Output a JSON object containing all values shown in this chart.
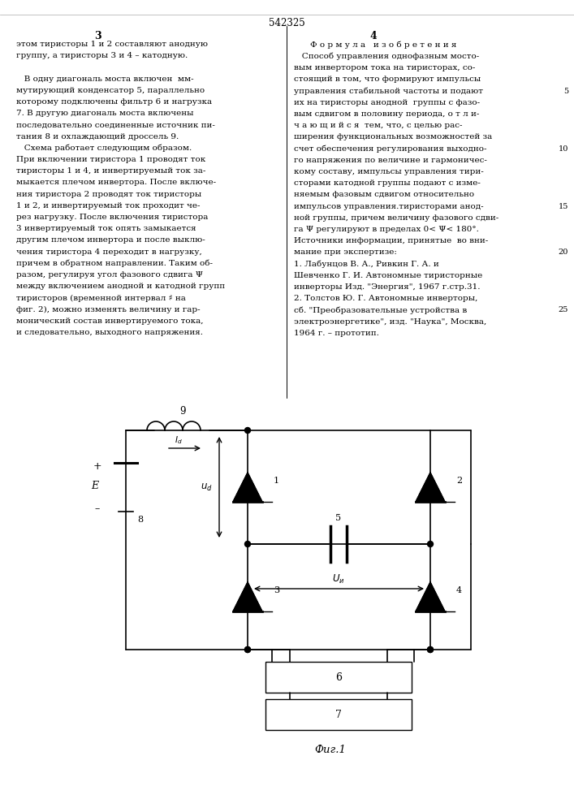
{
  "page_number": "542325",
  "col_left": "3",
  "col_right": "4",
  "text_left_lines": [
    "этом тиристоры 1 и 2 составляют анодную",
    "группу, а тиристоры 3 и 4 – катодную.",
    "",
    "   В одну диагональ моста включен  мм-",
    "мутирующий конденсатор 5, параллельно",
    "которому подключены фильтр 6 и нагрузка",
    "7. В другую диагональ моста включены",
    "последовательно соединенные источник пи-",
    "тания 8 и охлаждающий дроссель 9.",
    "   Схема работает следующим образом.",
    "При включении тиристора 1 проводят ток",
    "тиристоры 1 и 4, и инвертируемый ток за-",
    "мыкается плечом инвертора. После включе-",
    "ния тиристора 2 проводят ток тиристоры",
    "1 и 2, и инвертируемый ток проходит че-",
    "рез нагрузку. После включения тиристора",
    "3 инвертируемый ток опять замыкается",
    "другим плечом инвертора и после выклю-",
    "чения тиристора 4 переходит в нагрузку,",
    "причем в обратном направлении. Таким об-",
    "разом, регулируя угол фазового сдвига Ψ",
    "между включением анодной и катодной групп",
    "тиристоров (временной интервал ♯ на",
    "фиг. 2), можно изменять величину и гар-",
    "монический состав инвертируемого тока,",
    "и следовательно, выходного напряжения."
  ],
  "text_right_header": "Ф о р м у л а   и з о б р е т е н и я",
  "text_right_lines": [
    "   Способ управления однофазным мосто-",
    "вым инвертором тока на тиристорах, со-",
    "стоящий в том, что формируют импульсы",
    "управления стабильной частоты и подают",
    "их на тиристоры анодной  группы с фазо-",
    "вым сдвигом в половину периода, о т л и-",
    "ч а ю щ и й с я  тем, что, с целью рас-",
    "ширения функциональных возможностей за",
    "счет обеспечения регулирования выходно-",
    "го напряжения по величине и гармоничес-",
    "кому составу, импульсы управления тири-",
    "сторами катодной группы подают с изме-",
    "няемым фазовым сдвигом относительно",
    "импульсов управления.тиристорами анод-",
    "ной группы, причем величину фазового сдви-",
    "га Ψ регулируют в пределах 0< Ψ< 180°.",
    "Источники информации, принятые  во вни-",
    "мание при экспертизе:",
    "1. Лабунцов В. А., Ривкин Г. А. и",
    "Шевченко Г. И. Автономные тиристорные",
    "инверторы Изд. \"Энергия\", 1967 г.стр.31.",
    "2. Толстов Ю. Г. Автономные инверторы,",
    "сб. \"Преобразовательные устройства в",
    "электроэнергетике\", изд. \"Наука\", Москва,",
    "1964 г. – прототип."
  ],
  "fig_caption": "Фиг.1",
  "background_color": "#ffffff",
  "text_color": "#000000"
}
